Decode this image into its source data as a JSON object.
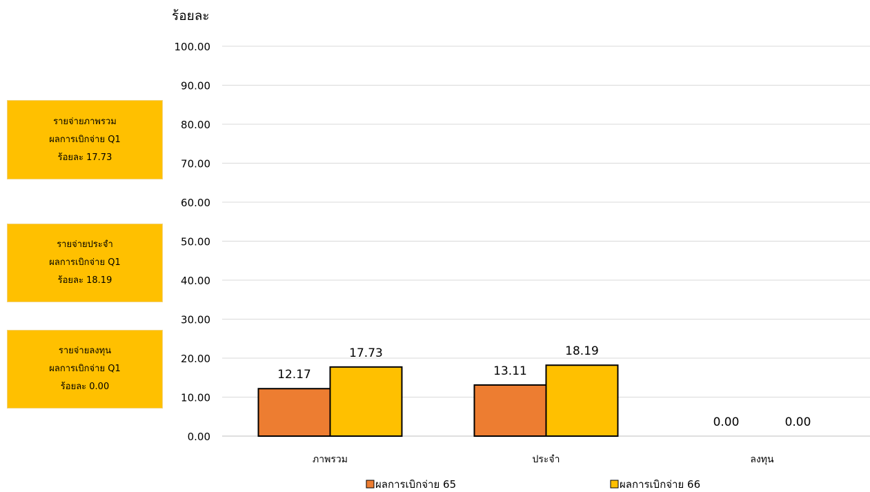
{
  "cards": [
    {
      "line1": "รายจ่ายภาพรวม",
      "line2": "ผลการเบิกจ่าย Q1",
      "line3": "ร้อยละ 17.73"
    },
    {
      "line1": "รายจ่ายประจำ",
      "line2": "ผลการเบิกจ่าย Q1",
      "line3": "ร้อยละ 18.19"
    },
    {
      "line1": "รายจ่ายลงทุน",
      "line2": "ผลการเบิกจ่าย Q1",
      "line3": "ร้อยละ 0.00"
    }
  ],
  "chart_data": {
    "type": "bar",
    "ylabel": "ร้อยละ",
    "ylim": [
      0,
      100
    ],
    "yticks": [
      "0.00",
      "10.00",
      "20.00",
      "30.00",
      "40.00",
      "50.00",
      "60.00",
      "70.00",
      "80.00",
      "90.00",
      "100.00"
    ],
    "categories": [
      "ภาพรวม",
      "ประจำ",
      "ลงทุน"
    ],
    "series": [
      {
        "name": "ผลการเบิกจ่าย 65",
        "values": [
          12.17,
          13.11,
          0.0
        ],
        "labels": [
          "12.17",
          "13.11",
          "0.00"
        ],
        "color": "#ed7d31"
      },
      {
        "name": "ผลการเบิกจ่าย 66",
        "values": [
          17.73,
          18.19,
          0.0
        ],
        "labels": [
          "17.73",
          "18.19",
          "0.00"
        ],
        "color": "#ffc000"
      }
    ],
    "grid": true,
    "legend": "bottom"
  }
}
